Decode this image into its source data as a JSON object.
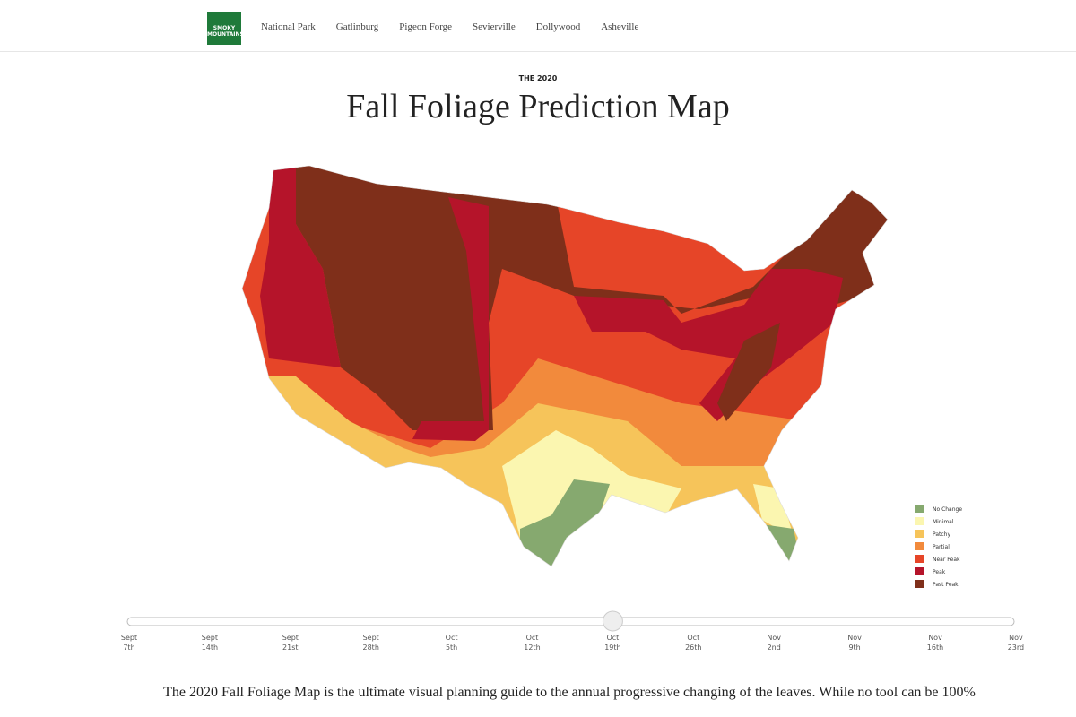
{
  "nav": {
    "brand": [
      "SMOKY",
      "MOUNTAINS"
    ],
    "links": [
      "National Park",
      "Gatlinburg",
      "Pigeon Forge",
      "Sevierville",
      "Dollywood",
      "Asheville"
    ]
  },
  "header": {
    "kicker": "THE 2020",
    "title": "Fall Foliage Prediction Map"
  },
  "legend": [
    {
      "label": "No Change",
      "color": "#86a96f"
    },
    {
      "label": "Minimal",
      "color": "#fbf6b0"
    },
    {
      "label": "Patchy",
      "color": "#f6c45a"
    },
    {
      "label": "Partial",
      "color": "#f28a3c"
    },
    {
      "label": "Near Peak",
      "color": "#e64528"
    },
    {
      "label": "Peak",
      "color": "#b5142a"
    },
    {
      "label": "Past Peak",
      "color": "#7f2f1a"
    }
  ],
  "slider": {
    "ticks": [
      [
        "Sept",
        "7th"
      ],
      [
        "Sept",
        "14th"
      ],
      [
        "Sept",
        "21st"
      ],
      [
        "Sept",
        "28th"
      ],
      [
        "Oct",
        "5th"
      ],
      [
        "Oct",
        "12th"
      ],
      [
        "Oct",
        "19th"
      ],
      [
        "Oct",
        "26th"
      ],
      [
        "Nov",
        "2nd"
      ],
      [
        "Nov",
        "9th"
      ],
      [
        "Nov",
        "16th"
      ],
      [
        "Nov",
        "23rd"
      ]
    ],
    "selected_index": 6
  },
  "intro": "The 2020 Fall Foliage Map is the ultimate visual planning guide to the annual progressive changing of the leaves. While no tool can be 100%"
}
